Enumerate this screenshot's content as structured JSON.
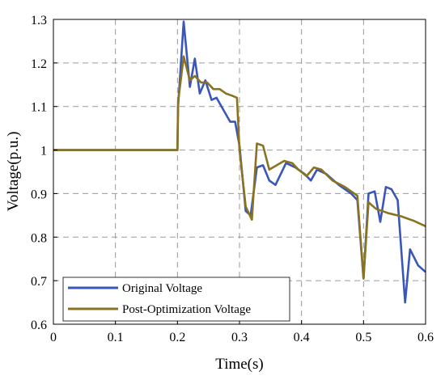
{
  "chart_data": {
    "type": "line",
    "title": "",
    "xlabel": "Time(s)",
    "ylabel": "Voltage(p.u.)",
    "xlim": [
      0,
      0.6
    ],
    "ylim": [
      0.6,
      1.3
    ],
    "x_ticks": [
      "0",
      "0.1",
      "0.2",
      "0.3",
      "0.4",
      "0.5",
      "0.6"
    ],
    "y_ticks": [
      "0.6",
      "0.7",
      "0.8",
      "0.9",
      "1",
      "1.1",
      "1.2",
      "1.3"
    ],
    "grid": true,
    "legend_position": "bottom-left",
    "series": [
      {
        "name": "Original Voltage",
        "color": "#3a56b8",
        "points": [
          [
            0,
            1.0
          ],
          [
            0.2,
            1.0
          ],
          [
            0.201,
            1.1
          ],
          [
            0.21,
            1.295
          ],
          [
            0.22,
            1.145
          ],
          [
            0.228,
            1.21
          ],
          [
            0.236,
            1.13
          ],
          [
            0.245,
            1.16
          ],
          [
            0.255,
            1.115
          ],
          [
            0.263,
            1.12
          ],
          [
            0.275,
            1.09
          ],
          [
            0.285,
            1.065
          ],
          [
            0.293,
            1.065
          ],
          [
            0.3,
            1.01
          ],
          [
            0.31,
            0.86
          ],
          [
            0.318,
            0.85
          ],
          [
            0.328,
            0.96
          ],
          [
            0.338,
            0.965
          ],
          [
            0.348,
            0.93
          ],
          [
            0.358,
            0.92
          ],
          [
            0.375,
            0.97
          ],
          [
            0.39,
            0.96
          ],
          [
            0.405,
            0.945
          ],
          [
            0.415,
            0.93
          ],
          [
            0.425,
            0.955
          ],
          [
            0.44,
            0.945
          ],
          [
            0.46,
            0.92
          ],
          [
            0.48,
            0.9
          ],
          [
            0.49,
            0.885
          ],
          [
            0.5,
            0.705
          ],
          [
            0.508,
            0.9
          ],
          [
            0.518,
            0.905
          ],
          [
            0.527,
            0.835
          ],
          [
            0.536,
            0.915
          ],
          [
            0.545,
            0.91
          ],
          [
            0.555,
            0.885
          ],
          [
            0.567,
            0.65
          ],
          [
            0.575,
            0.772
          ],
          [
            0.588,
            0.735
          ],
          [
            0.6,
            0.72
          ]
        ]
      },
      {
        "name": "Post-Optimization Voltage",
        "color": "#8a7320",
        "points": [
          [
            0,
            1.0
          ],
          [
            0.2,
            1.0
          ],
          [
            0.201,
            1.11
          ],
          [
            0.21,
            1.215
          ],
          [
            0.22,
            1.16
          ],
          [
            0.228,
            1.17
          ],
          [
            0.238,
            1.155
          ],
          [
            0.248,
            1.155
          ],
          [
            0.258,
            1.14
          ],
          [
            0.268,
            1.14
          ],
          [
            0.278,
            1.13
          ],
          [
            0.288,
            1.125
          ],
          [
            0.296,
            1.12
          ],
          [
            0.3,
            1.0
          ],
          [
            0.31,
            0.87
          ],
          [
            0.32,
            0.84
          ],
          [
            0.328,
            1.015
          ],
          [
            0.338,
            1.01
          ],
          [
            0.348,
            0.955
          ],
          [
            0.36,
            0.965
          ],
          [
            0.372,
            0.975
          ],
          [
            0.385,
            0.97
          ],
          [
            0.395,
            0.955
          ],
          [
            0.408,
            0.94
          ],
          [
            0.42,
            0.96
          ],
          [
            0.432,
            0.955
          ],
          [
            0.45,
            0.93
          ],
          [
            0.47,
            0.915
          ],
          [
            0.49,
            0.895
          ],
          [
            0.5,
            0.705
          ],
          [
            0.508,
            0.88
          ],
          [
            0.52,
            0.865
          ],
          [
            0.54,
            0.855
          ],
          [
            0.56,
            0.848
          ],
          [
            0.58,
            0.838
          ],
          [
            0.6,
            0.825
          ]
        ]
      }
    ]
  }
}
